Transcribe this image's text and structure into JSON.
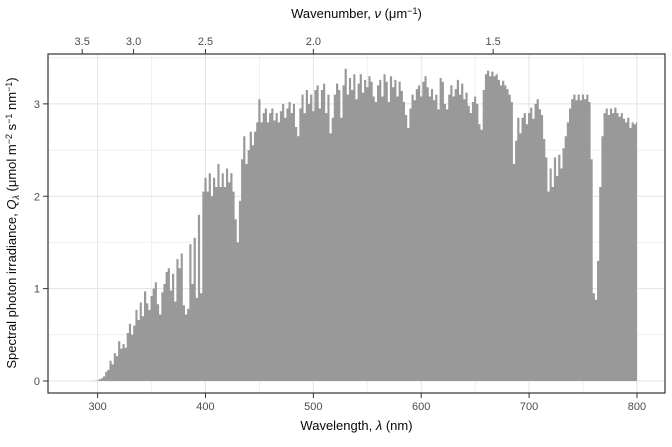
{
  "chart_data": {
    "type": "area",
    "title": "",
    "xlabel": "Wavelength, λ (nm)",
    "ylabel": "Spectral photon irradiance, Qλ (μmol m−2 s−1 nm−1)",
    "top_xlabel": "Wavenumber, ν (μm−1)",
    "legend": false,
    "grid": true,
    "fill_color": "#999999",
    "panel_border_color": "#333333",
    "tick_color": "#333333",
    "grid_major_color": "#e3e3e3",
    "grid_minor_color": "#efefef",
    "xlim": [
      254,
      826
    ],
    "ylim": [
      -0.13,
      3.54
    ],
    "x_ticks": [
      300,
      400,
      500,
      600,
      700,
      800
    ],
    "x_tick_labels": [
      "300",
      "400",
      "500",
      "600",
      "700",
      "800"
    ],
    "x_minor_ticks": [
      350,
      450,
      550,
      650,
      750
    ],
    "y_ticks": [
      0,
      1,
      2,
      3
    ],
    "y_tick_labels": [
      "0",
      "1",
      "2",
      "3"
    ],
    "y_minor_ticks": [
      0.5,
      1.5,
      2.5,
      3.5
    ],
    "top_ticks_wavenumber": [
      3.5,
      3.0,
      2.5,
      2.0,
      1.5
    ],
    "top_tick_labels": [
      "3.5",
      "3.0",
      "2.5",
      "2.0",
      "1.5"
    ],
    "x_start": 280,
    "x_step": 2,
    "x_end": 800,
    "values": [
      0,
      0,
      0,
      0,
      0,
      0,
      0,
      0,
      0.001,
      0.002,
      0.005,
      0.02,
      0.03,
      0.05,
      0.1,
      0.12,
      0.22,
      0.18,
      0.3,
      0.27,
      0.43,
      0.35,
      0.4,
      0.36,
      0.52,
      0.62,
      0.5,
      0.6,
      0.77,
      0.66,
      0.85,
      0.7,
      0.97,
      0.84,
      0.77,
      0.92,
      1.0,
      1.07,
      0.83,
      0.72,
      0.96,
      1.05,
      1.18,
      1.22,
      0.98,
      1.16,
      0.86,
      1.32,
      1.22,
      1.38,
      0.82,
      0.72,
      0.78,
      1.48,
      1.05,
      1.55,
      0.9,
      1.8,
      0.95,
      2.05,
      2.2,
      2.05,
      2.25,
      2.0,
      2.2,
      2.1,
      2.35,
      2.1,
      2.25,
      2.1,
      2.3,
      2.15,
      2.25,
      2.05,
      1.75,
      1.5,
      1.95,
      2.4,
      2.65,
      2.35,
      2.5,
      2.7,
      2.55,
      2.7,
      2.8,
      3.05,
      2.8,
      2.9,
      2.95,
      2.8,
      2.9,
      2.95,
      2.82,
      2.9,
      2.8,
      2.92,
      3.0,
      2.85,
      2.95,
      3.02,
      2.9,
      3.0,
      2.75,
      2.65,
      2.95,
      3.1,
      2.9,
      3.15,
      3.0,
      3.1,
      2.92,
      3.15,
      3.2,
      2.95,
      3.15,
      3.22,
      2.9,
      3.1,
      2.68,
      2.85,
      3.1,
      3.22,
      3.15,
      2.85,
      3.2,
      3.38,
      3.1,
      3.28,
      3.15,
      3.32,
      3.05,
      3.22,
      3.32,
      3.12,
      3.26,
      3.18,
      3.3,
      3.24,
      3.08,
      3.02,
      3.2,
      3.26,
      3.08,
      3.32,
      3.24,
      3.02,
      3.3,
      3.18,
      3.26,
      3.08,
      3.24,
      3.14,
      3.02,
      2.88,
      2.74,
      2.95,
      3.1,
      3.04,
      3.16,
      3.2,
      3.08,
      3.24,
      3.3,
      3.18,
      3.08,
      3.16,
      3.04,
      3.1,
      2.94,
      3.28,
      3.24,
      3.0,
      2.94,
      3.1,
      3.2,
      3.08,
      3.16,
      3.26,
      3.1,
      3.22,
      3.05,
      3.12,
      2.98,
      2.9,
      3.02,
      3.08,
      3.0,
      2.78,
      2.72,
      3.15,
      3.32,
      3.36,
      3.3,
      3.35,
      3.3,
      3.32,
      3.26,
      3.2,
      3.25,
      3.2,
      3.16,
      3.1,
      3.02,
      2.35,
      2.6,
      2.85,
      2.68,
      2.85,
      2.9,
      2.78,
      2.9,
      2.96,
      2.84,
      3.0,
      3.05,
      2.94,
      2.88,
      2.62,
      2.42,
      2.05,
      2.3,
      2.1,
      2.42,
      2.22,
      2.45,
      2.3,
      2.52,
      2.65,
      2.8,
      2.95,
      3.05,
      3.1,
      3.04,
      3.1,
      3.04,
      3.1,
      3.05,
      3.1,
      3.02,
      2.4,
      0.95,
      0.88,
      1.3,
      2.1,
      2.65,
      2.9,
      2.95,
      2.88,
      2.95,
      2.9,
      2.96,
      2.9,
      2.86,
      2.9,
      2.84,
      2.8,
      2.85,
      2.74,
      2.8,
      2.78,
      2.8
    ],
    "labels": {
      "top": {
        "p1": "Wavenumber, ",
        "p2": "ν",
        "p3": " (μm",
        "p4": "−1",
        "p5": ")"
      },
      "bottom": {
        "p1": "Wavelength, ",
        "p2": "λ",
        "p3": " (nm)"
      },
      "left": {
        "p1": "Spectral photon irradiance, ",
        "p2": "Q",
        "p3": "λ",
        "p4": " (μmol m",
        "p5": "−2",
        "p6": " s",
        "p7": "−1",
        "p8": " nm",
        "p9": "−1",
        "p10": ")"
      }
    }
  }
}
